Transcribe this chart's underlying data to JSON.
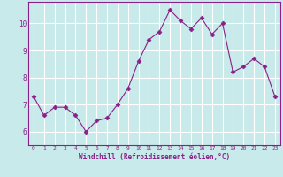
{
  "x": [
    0,
    1,
    2,
    3,
    4,
    5,
    6,
    7,
    8,
    9,
    10,
    11,
    12,
    13,
    14,
    15,
    16,
    17,
    18,
    19,
    20,
    21,
    22,
    23
  ],
  "y": [
    7.3,
    6.6,
    6.9,
    6.9,
    6.6,
    6.0,
    6.4,
    6.5,
    7.0,
    7.6,
    8.6,
    9.4,
    9.7,
    10.5,
    10.1,
    9.8,
    10.2,
    9.6,
    10.0,
    8.2,
    8.4,
    8.7,
    8.4,
    7.3
  ],
  "line_color": "#882288",
  "marker": "D",
  "marker_size": 2.5,
  "bg_color": "#c8eaea",
  "grid_color": "#ffffff",
  "xlabel": "Windchill (Refroidissement éolien,°C)",
  "xlabel_color": "#882288",
  "tick_color": "#882288",
  "spine_color": "#882288",
  "ylim": [
    5.5,
    10.8
  ],
  "xlim": [
    -0.5,
    23.5
  ],
  "yticks": [
    6,
    7,
    8,
    9,
    10
  ],
  "xticks": [
    0,
    1,
    2,
    3,
    4,
    5,
    6,
    7,
    8,
    9,
    10,
    11,
    12,
    13,
    14,
    15,
    16,
    17,
    18,
    19,
    20,
    21,
    22,
    23
  ],
  "figsize": [
    3.2,
    2.0
  ],
  "dpi": 100
}
